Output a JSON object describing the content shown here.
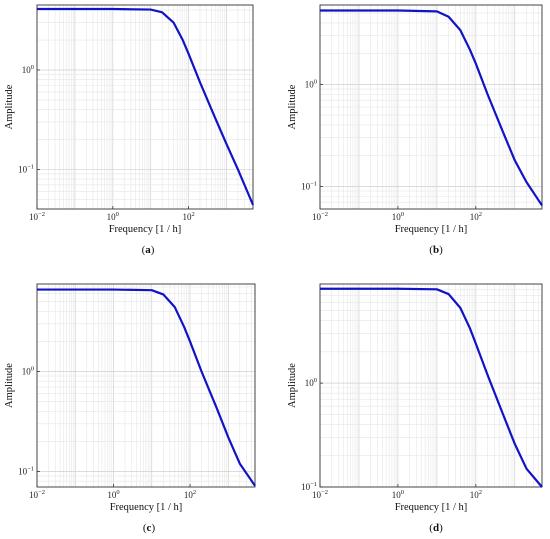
{
  "chart_data": [
    {
      "type": "line",
      "panel_label": "(a)",
      "xlabel": "Frequency [1 / h]",
      "ylabel": "Amplitude",
      "xscale": "log",
      "yscale": "log",
      "xlim": [
        0.01,
        5000
      ],
      "ylim": [
        0.04,
        4.5
      ],
      "xticks": [
        {
          "base": "10",
          "exp": "−2",
          "value": 0.01
        },
        {
          "base": "10",
          "exp": "0",
          "value": 1
        },
        {
          "base": "10",
          "exp": "2",
          "value": 100
        }
      ],
      "yticks": [
        {
          "base": "10",
          "exp": "−1",
          "value": 0.1
        },
        {
          "base": "10",
          "exp": "0",
          "value": 1
        }
      ],
      "grid": true,
      "series": [
        {
          "color": "#1212c8",
          "points": [
            [
              0.01,
              4.1
            ],
            [
              1,
              4.1
            ],
            [
              10,
              4.05
            ],
            [
              20,
              3.8
            ],
            [
              40,
              3.0
            ],
            [
              70,
              2.0
            ],
            [
              100,
              1.45
            ],
            [
              200,
              0.75
            ],
            [
              500,
              0.33
            ],
            [
              1000,
              0.18
            ],
            [
              2000,
              0.1
            ],
            [
              5000,
              0.044
            ]
          ]
        }
      ]
    },
    {
      "type": "line",
      "panel_label": "(b)",
      "xlabel": "Frequency [1 / h]",
      "ylabel": "Amplitude",
      "xscale": "log",
      "yscale": "log",
      "xlim": [
        0.01,
        5000
      ],
      "ylim": [
        0.06,
        6
      ],
      "xticks": [
        {
          "base": "10",
          "exp": "−2",
          "value": 0.01
        },
        {
          "base": "10",
          "exp": "0",
          "value": 1
        },
        {
          "base": "10",
          "exp": "2",
          "value": 100
        }
      ],
      "yticks": [
        {
          "base": "10",
          "exp": "−1",
          "value": 0.1
        },
        {
          "base": "10",
          "exp": "0",
          "value": 1
        }
      ],
      "grid": true,
      "series": [
        {
          "color": "#1212c8",
          "points": [
            [
              0.01,
              5.3
            ],
            [
              1,
              5.3
            ],
            [
              10,
              5.2
            ],
            [
              20,
              4.6
            ],
            [
              40,
              3.4
            ],
            [
              70,
              2.2
            ],
            [
              100,
              1.6
            ],
            [
              200,
              0.8
            ],
            [
              500,
              0.34
            ],
            [
              1000,
              0.18
            ],
            [
              2000,
              0.11
            ],
            [
              5000,
              0.065
            ]
          ]
        }
      ]
    },
    {
      "type": "line",
      "panel_label": "(c)",
      "xlabel": "Frequency [1 / h]",
      "ylabel": "Amplitude",
      "xscale": "log",
      "yscale": "log",
      "xlim": [
        0.01,
        5000
      ],
      "ylim": [
        0.07,
        7.5
      ],
      "xticks": [
        {
          "base": "10",
          "exp": "−2",
          "value": 0.01
        },
        {
          "base": "10",
          "exp": "0",
          "value": 1
        },
        {
          "base": "10",
          "exp": "2",
          "value": 100
        }
      ],
      "yticks": [
        {
          "base": "10",
          "exp": "−1",
          "value": 0.1
        },
        {
          "base": "10",
          "exp": "0",
          "value": 1
        }
      ],
      "grid": true,
      "series": [
        {
          "color": "#1212c8",
          "points": [
            [
              0.01,
              6.6
            ],
            [
              1,
              6.6
            ],
            [
              10,
              6.5
            ],
            [
              20,
              5.9
            ],
            [
              40,
              4.4
            ],
            [
              70,
              2.8
            ],
            [
              100,
              2.0
            ],
            [
              200,
              1.0
            ],
            [
              500,
              0.43
            ],
            [
              1000,
              0.22
            ],
            [
              2000,
              0.12
            ],
            [
              5000,
              0.072
            ]
          ]
        }
      ]
    },
    {
      "type": "line",
      "panel_label": "(d)",
      "xlabel": "Frequency [1 / h]",
      "ylabel": "Amplitude",
      "xscale": "log",
      "yscale": "log",
      "xlim": [
        0.01,
        5000
      ],
      "ylim": [
        0.1,
        9
      ],
      "xticks": [
        {
          "base": "10",
          "exp": "−2",
          "value": 0.01
        },
        {
          "base": "10",
          "exp": "0",
          "value": 1
        },
        {
          "base": "10",
          "exp": "2",
          "value": 100
        }
      ],
      "yticks": [
        {
          "base": "10",
          "exp": "−1",
          "value": 0.1
        },
        {
          "base": "10",
          "exp": "0",
          "value": 1
        }
      ],
      "grid": true,
      "series": [
        {
          "color": "#1212c8",
          "points": [
            [
              0.01,
              8.1
            ],
            [
              1,
              8.1
            ],
            [
              10,
              8.0
            ],
            [
              20,
              7.2
            ],
            [
              40,
              5.3
            ],
            [
              70,
              3.4
            ],
            [
              100,
              2.4
            ],
            [
              200,
              1.2
            ],
            [
              500,
              0.5
            ],
            [
              1000,
              0.26
            ],
            [
              2000,
              0.15
            ],
            [
              5000,
              0.1
            ]
          ]
        }
      ]
    }
  ]
}
